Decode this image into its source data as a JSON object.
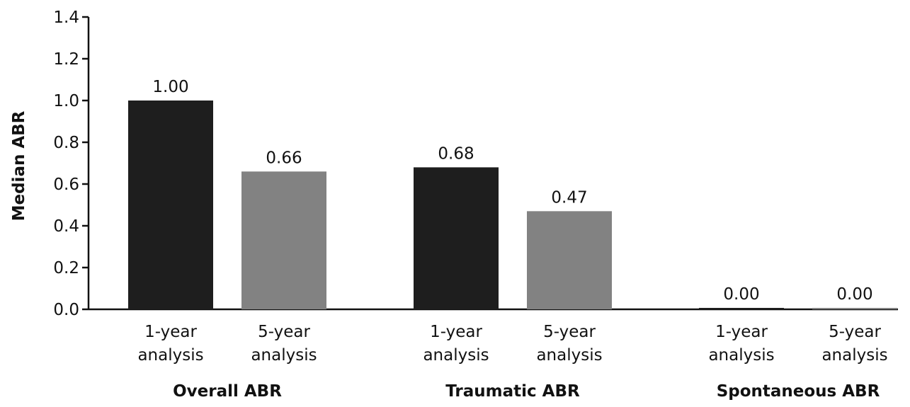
{
  "chart_data": {
    "type": "bar",
    "ylabel": "Median ABR",
    "ylim": [
      0,
      1.4
    ],
    "yticks": [
      "0.0",
      "0.2",
      "0.4",
      "0.6",
      "0.8",
      "1.0",
      "1.2",
      "1.4"
    ],
    "groups": [
      {
        "name": "Overall ABR",
        "bars": [
          {
            "label": [
              "1-year",
              "analysis"
            ],
            "value": 1.0,
            "value_label": "1.00",
            "color": "#1e1e1e"
          },
          {
            "label": [
              "5-year",
              "analysis"
            ],
            "value": 0.66,
            "value_label": "0.66",
            "color": "#828282"
          }
        ]
      },
      {
        "name": "Traumatic ABR",
        "bars": [
          {
            "label": [
              "1-year",
              "analysis"
            ],
            "value": 0.68,
            "value_label": "0.68",
            "color": "#1e1e1e"
          },
          {
            "label": [
              "5-year",
              "analysis"
            ],
            "value": 0.47,
            "value_label": "0.47",
            "color": "#828282"
          }
        ]
      },
      {
        "name": "Spontaneous ABR",
        "bars": [
          {
            "label": [
              "1-year",
              "analysis"
            ],
            "value": 0.0,
            "value_label": "0.00",
            "color": "#1e1e1e"
          },
          {
            "label": [
              "5-year",
              "analysis"
            ],
            "value": 0.0,
            "value_label": "0.00",
            "color": "#828282"
          }
        ]
      }
    ],
    "grid": false,
    "legend": "none"
  }
}
